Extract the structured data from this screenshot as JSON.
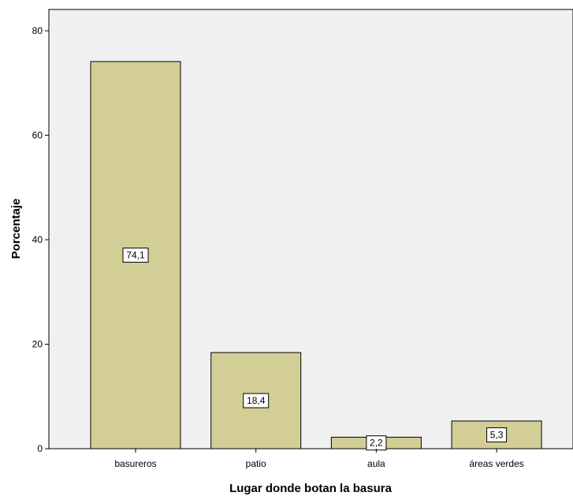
{
  "chart_data": {
    "type": "bar",
    "categories": [
      "basureros",
      "patio",
      "aula",
      "áreas verdes"
    ],
    "values": [
      74.1,
      18.4,
      2.2,
      5.3
    ],
    "value_labels": [
      "74,1",
      "18,4",
      "2,2",
      "5,3"
    ],
    "xlabel": "Lugar donde botan la basura",
    "ylabel": "Porcentaje",
    "ylim": [
      0,
      80
    ],
    "yticks": [
      0,
      20,
      40,
      60,
      80
    ],
    "ytick_labels": [
      "0",
      "20",
      "40",
      "60",
      "80"
    ],
    "grid": false,
    "colors": {
      "plot_background": "#f0f0f0",
      "bar_fill": "#d3ce96",
      "bar_stroke": "#000000"
    }
  }
}
